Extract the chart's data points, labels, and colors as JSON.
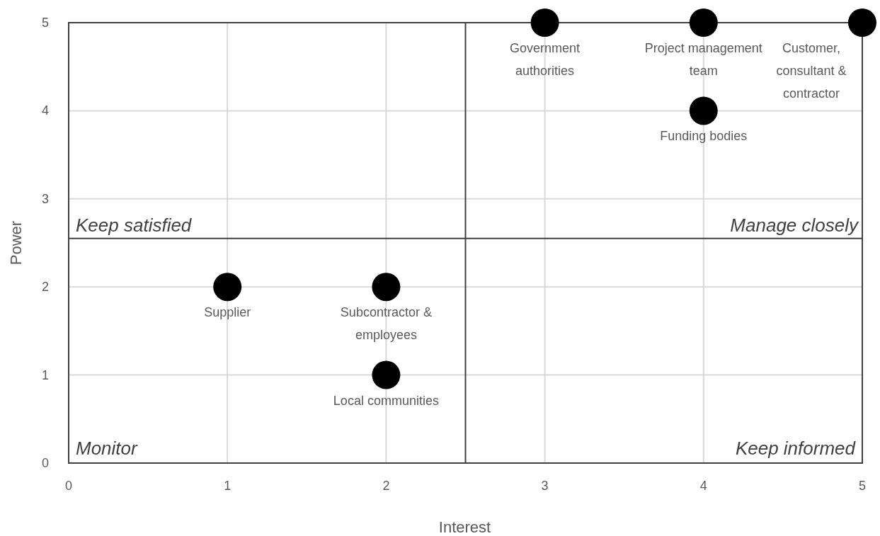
{
  "chart_data": {
    "type": "scatter",
    "xlabel": "Interest",
    "ylabel": "Power",
    "x": [
      3,
      4,
      5,
      4,
      1,
      2,
      2
    ],
    "series": [
      {
        "color": "#000000",
        "values": [
          5,
          5,
          5,
          4,
          2,
          2,
          1
        ]
      }
    ],
    "marker": "circle",
    "grid": true,
    "xlim": [
      0,
      5
    ],
    "ylim": [
      0,
      5
    ],
    "xticks": [
      0,
      1,
      2,
      3,
      4,
      5
    ],
    "yticks": [
      0,
      1,
      2,
      3,
      4,
      5
    ],
    "ref_lines": [
      {
        "axis": "x",
        "value": 2.5,
        "color": "#404040"
      },
      {
        "axis": "y",
        "value": 2.55,
        "color": "#404040"
      }
    ],
    "annotations": [
      "Keep satisfied",
      "Manage closely",
      "Monitor",
      "Keep informed",
      {
        "text": "Government\nauthorities",
        "x": 3,
        "y": 5
      },
      {
        "text": "Project management\nteam",
        "x": 4,
        "y": 5
      },
      {
        "text": "Customer,\nconsultant &\ncontractor",
        "x": 5,
        "y": 5
      },
      {
        "text": "Funding bodies",
        "x": 4,
        "y": 4
      },
      {
        "text": "Supplier",
        "x": 1,
        "y": 2
      },
      {
        "text": "Subcontractor &\nemployees",
        "x": 2,
        "y": 2
      },
      {
        "text": "Local communities",
        "x": 2,
        "y": 1
      }
    ]
  }
}
